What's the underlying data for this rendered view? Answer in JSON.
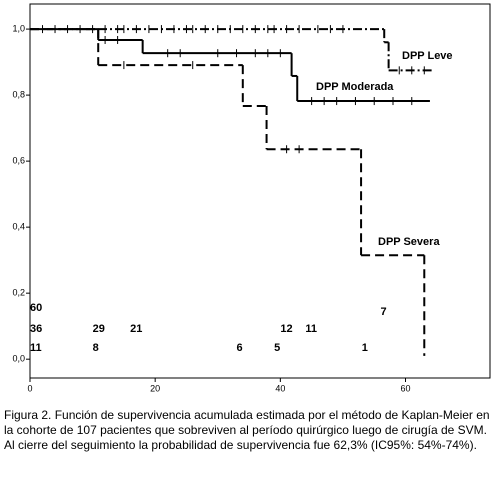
{
  "chart_data": {
    "type": "km",
    "caption": "Figura 2. Función de supervivencia acumulada estimada por el método de Kaplan-Meier en la cohorte de 107 pacientes que sobreviven al período quirúrgico luego de cirugía de SVM. Al cierre del seguimiento la probabilidad de supervivencia fue 62,3% (IC95%: 54%-74%).",
    "xlim": [
      0,
      73.5
    ],
    "xticks": [
      0,
      20,
      40,
      60
    ],
    "ylim": [
      -0.057,
      1.076
    ],
    "yticks": [
      {
        "value": 0,
        "label": "0,0"
      },
      {
        "value": 0.2,
        "label": "0,2"
      },
      {
        "value": 0.4,
        "label": "0,4"
      },
      {
        "value": 0.6,
        "label": "0,6"
      },
      {
        "value": 0.8,
        "label": "0,8"
      },
      {
        "value": 1,
        "label": "1,0"
      }
    ],
    "series": [
      {
        "name": "DPP Leve",
        "color": "#000000",
        "line_style": "dashdot",
        "x": [
          0,
          56.6,
          57.3,
          64.5
        ],
        "values": [
          1.0,
          0.96,
          0.875,
          0.875
        ],
        "censored": [
          2,
          4,
          6,
          8,
          10,
          12,
          14,
          15,
          17,
          19,
          21,
          23,
          25,
          26,
          28,
          30,
          32,
          34,
          36,
          38,
          39,
          41,
          43,
          46,
          48,
          50,
          59,
          61,
          63
        ],
        "at_risk_x": [
          0,
          56
        ],
        "at_risk": [
          60,
          7
        ]
      },
      {
        "name": "DPP Moderada",
        "color": "#000000",
        "line_style": "solid",
        "x": [
          0,
          10.9,
          18,
          41.8,
          42.7,
          63.9
        ],
        "values": [
          1.0,
          0.967,
          0.927,
          0.858,
          0.782,
          0.782
        ],
        "censored": [
          12,
          14,
          22,
          24,
          30,
          33,
          36,
          38,
          40,
          45,
          47,
          49,
          52,
          55,
          58,
          61
        ],
        "at_risk_x": [
          0,
          10,
          16,
          40,
          44
        ],
        "at_risk": [
          36,
          29,
          21,
          12,
          11
        ]
      },
      {
        "name": "DPP Severa",
        "color": "#000000",
        "line_style": "dashed",
        "x": [
          0,
          10.9,
          34,
          37.8,
          52.9,
          63,
          63
        ],
        "values": [
          1.0,
          0.891,
          0.767,
          0.636,
          0.315,
          0.315,
          0.01
        ],
        "censored": [
          15,
          26,
          41,
          43
        ],
        "at_risk_x": [
          0,
          10,
          33,
          39,
          53
        ],
        "at_risk": [
          11,
          8,
          6,
          5,
          1
        ]
      }
    ]
  }
}
